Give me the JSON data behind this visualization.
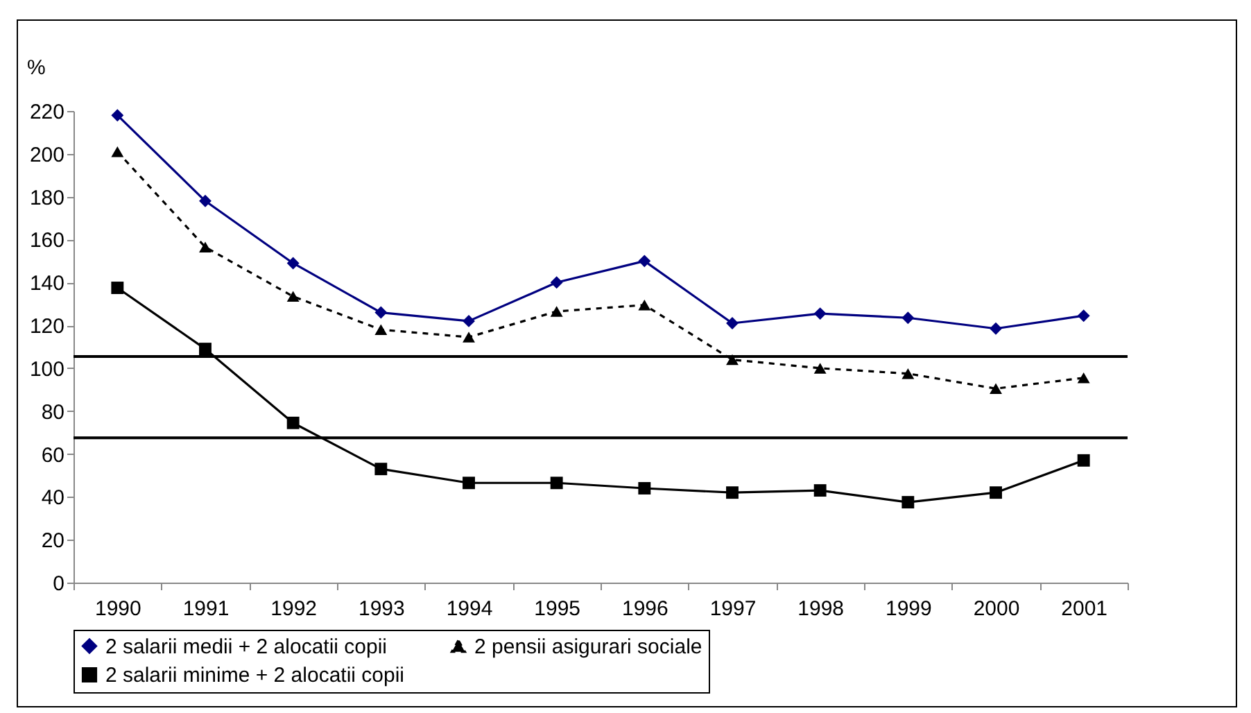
{
  "chart_data": {
    "type": "line",
    "ylabel": "%",
    "categories": [
      "1990",
      "1991",
      "1992",
      "1993",
      "1994",
      "1995",
      "1996",
      "1997",
      "1998",
      "1999",
      "2000",
      "2001"
    ],
    "series": [
      {
        "name": "2 salarii medii + 2 alocatii copii",
        "color": "#000080",
        "marker": "diamond",
        "line_style": "solid",
        "values": [
          218,
          178,
          149,
          126,
          122,
          140,
          150,
          121,
          125.5,
          123.5,
          118.5,
          124.5
        ]
      },
      {
        "name": "2 pensii asigurari sociale",
        "color": "#000000",
        "marker": "triangle",
        "line_style": "dashed",
        "values": [
          201,
          156.5,
          133.5,
          118,
          114.5,
          126.5,
          129.5,
          104,
          100,
          97.5,
          90.5,
          95.5
        ]
      },
      {
        "name": "2 salarii minime + 2 alocatii copii",
        "color": "#000000",
        "marker": "square",
        "line_style": "solid",
        "values": [
          137.5,
          109,
          74.5,
          53,
          46.5,
          46.5,
          44,
          42,
          43,
          37.5,
          42,
          57
        ]
      }
    ],
    "ylim": [
      0,
      220
    ],
    "yticks": [
      0,
      20,
      40,
      60,
      80,
      100,
      120,
      140,
      160,
      180,
      200,
      220
    ],
    "ref_lines": [
      {
        "axis": "y",
        "value": 105.5,
        "color": "#000000"
      },
      {
        "axis": "y",
        "value": 67.5,
        "color": "#000000"
      }
    ],
    "grid": false,
    "legend": "bottom"
  }
}
